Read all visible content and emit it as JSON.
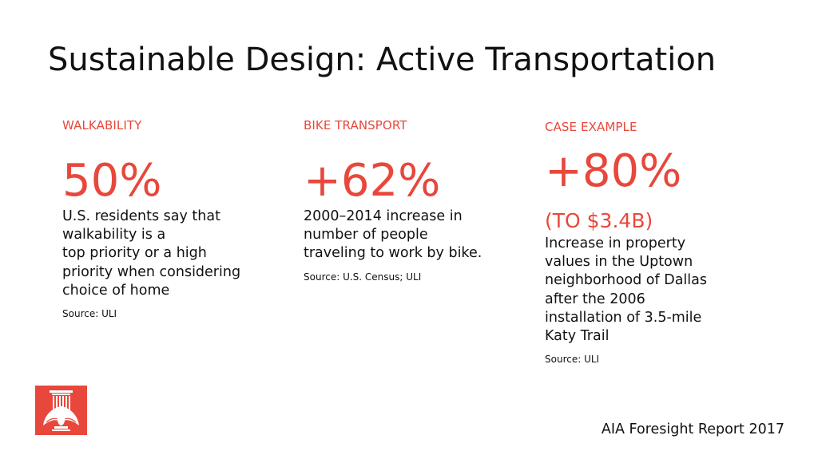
{
  "slide": {
    "title": "Sustainable Design: Active Transportation",
    "footer": "AIA Foresight Report 2017"
  },
  "columns": [
    {
      "category": "WALKABILITY",
      "stat": "50%",
      "description_lines": [
        "U.S. residents say that",
        "walkability is a",
        "top priority or a high",
        "priority when considering",
        "choice of home"
      ],
      "source": "Source: ULI"
    },
    {
      "category": "BIKE TRANSPORT",
      "stat": "+62%",
      "description_lines": [
        "2000–2014 increase in",
        "number of people",
        "traveling to work by bike."
      ],
      "source": "Source: U.S. Census; ULI"
    },
    {
      "category": "CASE EXAMPLE",
      "stat": "+80%",
      "stat_sub": "(TO $3.4B)",
      "description_lines": [
        "Increase in property",
        "values in the Uptown",
        "neighborhood of Dallas",
        "after the 2006",
        "installation of 3.5-mile",
        "Katy Trail"
      ],
      "source": "Source: ULI"
    }
  ],
  "colors": {
    "accent": "#e8473b",
    "text": "#111111",
    "background": "#ffffff"
  },
  "icons": {
    "logo": "aia-eagle-logo-icon"
  }
}
